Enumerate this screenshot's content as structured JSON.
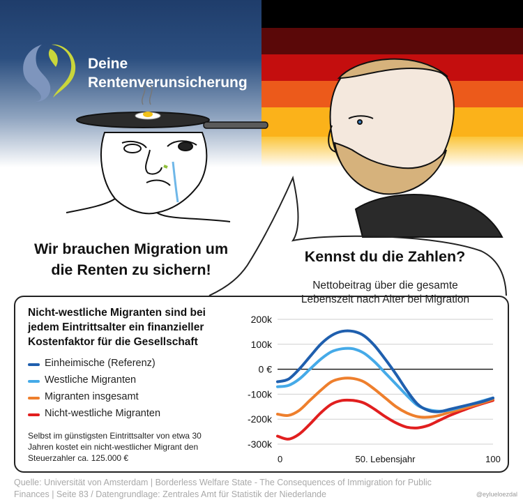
{
  "brand": {
    "line1": "Deine",
    "line2": "Rentenverunsicherung"
  },
  "flag": {
    "colors": [
      "#000000",
      "#dd0000",
      "#ffce00"
    ]
  },
  "claim": {
    "line1": "Wir brauchen Migration um",
    "line2": "die Renten zu sichern!"
  },
  "bubble": {
    "title": "Kennst du die Zahlen?"
  },
  "chart_title": {
    "line1": "Nettobeitrag über die gesamte",
    "line2": "Lebenszeit nach Alter bei Migration"
  },
  "legend_title": {
    "line1": "Nicht-westliche Migranten sind bei",
    "line2": "jedem Eintrittsalter ein finanzieller",
    "line3": "Kostenfaktor für die Gesellschaft"
  },
  "note": {
    "line1": "Selbst im günstigsten Eintrittsalter von etwa 30",
    "line2": "Jahren kostet ein nicht-westlicher Migrant den",
    "line3": "Steuerzahler ca. 125.000 €"
  },
  "source": {
    "line1": "Quelle: Universität von Amsterdam | Borderless Welfare State - The Consequences of Immigration for Public",
    "line2": "Finances | Seite 83 / Datengrundlage: Zentrales Amt für Statistik der Niederlande"
  },
  "handle": "@eylueloezdal",
  "chart_data": {
    "type": "line",
    "title": "Nettobeitrag über die gesamte Lebenszeit nach Alter bei Migration",
    "xlabel": "",
    "ylabel": "",
    "xlim": [
      0,
      100
    ],
    "ylim": [
      -300000,
      200000
    ],
    "x_ticks": [
      {
        "value": 0,
        "label": "0"
      },
      {
        "value": 50,
        "label": "50. Lebensjahr"
      },
      {
        "value": 100,
        "label": "100"
      }
    ],
    "y_ticks": [
      {
        "value": 200000,
        "label": "200k"
      },
      {
        "value": 100000,
        "label": "100k"
      },
      {
        "value": 0,
        "label": "0 €"
      },
      {
        "value": -100000,
        "label": "-100k"
      },
      {
        "value": -200000,
        "label": "-200k"
      },
      {
        "value": -300000,
        "label": "-300k"
      }
    ],
    "grid": "horizontal",
    "series": [
      {
        "name": "Einheimische (Referenz)",
        "color": "#1f5fae",
        "points": [
          [
            0,
            -50000
          ],
          [
            5,
            -40000
          ],
          [
            10,
            0
          ],
          [
            15,
            50000
          ],
          [
            20,
            100000
          ],
          [
            25,
            135000
          ],
          [
            30,
            152000
          ],
          [
            35,
            152000
          ],
          [
            40,
            135000
          ],
          [
            45,
            95000
          ],
          [
            50,
            40000
          ],
          [
            55,
            -20000
          ],
          [
            60,
            -85000
          ],
          [
            65,
            -140000
          ],
          [
            70,
            -165000
          ],
          [
            75,
            -170000
          ],
          [
            80,
            -160000
          ],
          [
            85,
            -150000
          ],
          [
            90,
            -140000
          ],
          [
            95,
            -130000
          ],
          [
            100,
            -115000
          ]
        ]
      },
      {
        "name": "Westliche Migranten",
        "color": "#45aae8",
        "points": [
          [
            0,
            -70000
          ],
          [
            5,
            -65000
          ],
          [
            10,
            -40000
          ],
          [
            15,
            0
          ],
          [
            20,
            40000
          ],
          [
            25,
            70000
          ],
          [
            30,
            82000
          ],
          [
            35,
            82000
          ],
          [
            40,
            65000
          ],
          [
            45,
            30000
          ],
          [
            50,
            -15000
          ],
          [
            55,
            -60000
          ],
          [
            60,
            -105000
          ],
          [
            65,
            -145000
          ],
          [
            70,
            -162000
          ],
          [
            75,
            -168000
          ],
          [
            80,
            -163000
          ],
          [
            85,
            -152000
          ],
          [
            90,
            -140000
          ],
          [
            95,
            -127000
          ],
          [
            100,
            -115000
          ]
        ]
      },
      {
        "name": "Migranten insgesamt",
        "color": "#ee7f2d",
        "points": [
          [
            0,
            -180000
          ],
          [
            5,
            -185000
          ],
          [
            10,
            -165000
          ],
          [
            15,
            -125000
          ],
          [
            20,
            -85000
          ],
          [
            25,
            -50000
          ],
          [
            30,
            -37000
          ],
          [
            35,
            -37000
          ],
          [
            40,
            -50000
          ],
          [
            45,
            -80000
          ],
          [
            50,
            -115000
          ],
          [
            55,
            -150000
          ],
          [
            60,
            -175000
          ],
          [
            65,
            -190000
          ],
          [
            70,
            -192000
          ],
          [
            75,
            -185000
          ],
          [
            80,
            -172000
          ],
          [
            85,
            -160000
          ],
          [
            90,
            -148000
          ],
          [
            95,
            -135000
          ],
          [
            100,
            -120000
          ]
        ]
      },
      {
        "name": "Nicht-westliche Migranten",
        "color": "#e11f1f",
        "points": [
          [
            0,
            -268000
          ],
          [
            5,
            -280000
          ],
          [
            10,
            -260000
          ],
          [
            15,
            -220000
          ],
          [
            20,
            -175000
          ],
          [
            25,
            -140000
          ],
          [
            30,
            -125000
          ],
          [
            35,
            -125000
          ],
          [
            40,
            -135000
          ],
          [
            45,
            -160000
          ],
          [
            50,
            -190000
          ],
          [
            55,
            -215000
          ],
          [
            60,
            -232000
          ],
          [
            65,
            -235000
          ],
          [
            70,
            -225000
          ],
          [
            75,
            -205000
          ],
          [
            80,
            -185000
          ],
          [
            85,
            -168000
          ],
          [
            90,
            -152000
          ],
          [
            95,
            -138000
          ],
          [
            100,
            -125000
          ]
        ]
      }
    ]
  }
}
